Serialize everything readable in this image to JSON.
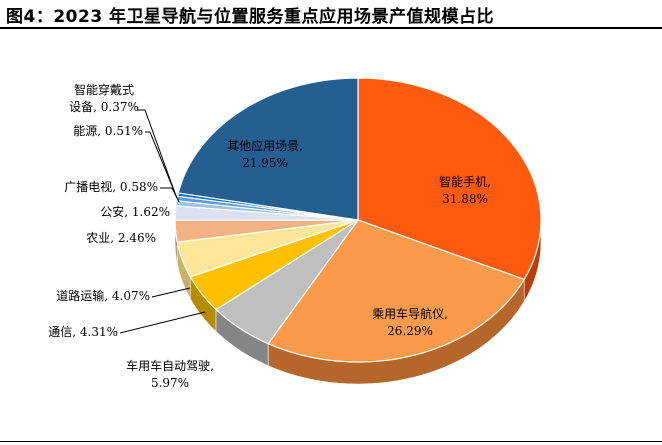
{
  "figure": {
    "title": "图4：2023 年卫星导航与位置服务重点应用场景产值规模占比"
  },
  "chart_data": {
    "type": "pie",
    "title": "图4：2023 年卫星导航与位置服务重点应用场景产值规模占比",
    "legend": "none",
    "slices": [
      {
        "label": "智能手机",
        "value": 31.88,
        "value_text": "31.88%",
        "color": "#FF5A0E",
        "side": "#B83D06"
      },
      {
        "label": "乘用车导航仪",
        "value": 26.29,
        "value_text": "26.29%",
        "color": "#FA9A4A",
        "side": "#B5662A"
      },
      {
        "label": "车用车自动驾驶",
        "value": 5.97,
        "value_text": "5.97%",
        "color": "#BFBFBF",
        "side": "#858585"
      },
      {
        "label": "通信",
        "value": 4.31,
        "value_text": "4.31%",
        "color": "#FFC000",
        "side": "#B88A00"
      },
      {
        "label": "道路运输",
        "value": 4.07,
        "value_text": "4.07%",
        "color": "#FFE699",
        "side": "#C9B36A"
      },
      {
        "label": "农业",
        "value": 2.46,
        "value_text": "2.46%",
        "color": "#F4B183",
        "side": "#B98060"
      },
      {
        "label": "公安",
        "value": 1.62,
        "value_text": "1.62%",
        "color": "#D9E1F2",
        "side": "#A0A8B8"
      },
      {
        "label": "广播电视",
        "value": 0.58,
        "value_text": "0.58%",
        "color": "#9DC3E6",
        "side": "#6E8EAA"
      },
      {
        "label": "能源",
        "value": 0.51,
        "value_text": "0.51%",
        "color": "#5B9BD5",
        "side": "#3F6E99"
      },
      {
        "label": "智能穿戴式设备",
        "value": 0.37,
        "value_text": "0.37%",
        "color": "#0070C0",
        "side": "#00508A"
      },
      {
        "label": "其他应用场景",
        "value": 21.95,
        "value_text": "21.95%",
        "color": "#255E91",
        "side": "#173D60"
      }
    ]
  }
}
